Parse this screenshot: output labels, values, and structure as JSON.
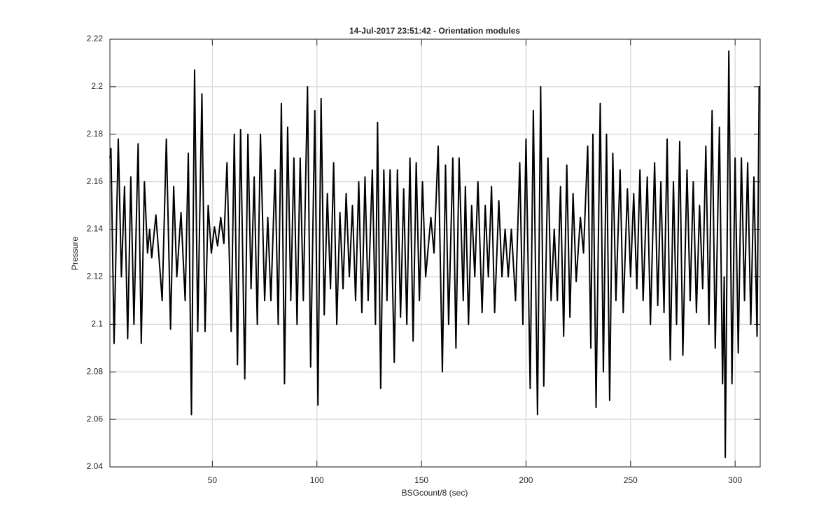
{
  "chart_data": {
    "type": "line",
    "title": "14-Jul-2017 23:51:42 - Orientation modules",
    "x_label": "BSGcount/8 (sec)",
    "y_label": "Pressure",
    "xlim": [
      1,
      312
    ],
    "ylim": [
      2.04,
      2.22
    ],
    "xticks": [
      50,
      100,
      150,
      200,
      250,
      300
    ],
    "yticks": [
      2.04,
      2.06,
      2.08,
      2.1,
      2.12,
      2.14,
      2.16,
      2.18,
      2.2,
      2.22
    ],
    "grid": true,
    "series": [
      {
        "color": "#000000",
        "x": [
          1,
          1.5,
          3,
          5,
          6.5,
          8,
          9.5,
          11,
          12.5,
          14.5,
          16,
          17.5,
          19,
          20,
          21,
          23,
          26,
          28,
          30,
          31.5,
          33,
          35,
          37,
          38.5,
          40,
          41.5,
          43,
          45,
          46.5,
          48,
          49.5,
          51,
          52.5,
          54,
          55.5,
          57,
          59,
          60.5,
          62,
          63.5,
          65.5,
          67,
          68.5,
          70,
          71.5,
          73,
          75,
          76.5,
          78,
          80,
          81.5,
          83,
          84.5,
          86,
          87.5,
          89,
          90.5,
          92,
          93.5,
          95.5,
          97,
          99,
          100.5,
          102,
          103.5,
          105,
          106.5,
          108,
          109.5,
          111,
          112.5,
          114,
          115.5,
          117,
          118.5,
          120,
          121.5,
          123,
          124.5,
          126.5,
          128,
          129,
          130.5,
          132,
          133.5,
          135,
          137,
          138.5,
          140,
          141.5,
          143,
          144.5,
          146,
          147.5,
          149,
          150.5,
          152,
          154.5,
          156,
          158,
          160,
          161.5,
          163,
          165,
          166.5,
          168,
          170,
          171,
          172.5,
          174,
          175.5,
          177,
          179,
          180.5,
          182,
          183.5,
          185,
          187,
          188.5,
          190,
          191.5,
          193,
          195,
          197,
          198.5,
          200,
          202,
          203.5,
          205.5,
          207,
          208.5,
          210.5,
          212,
          213.5,
          215,
          216.5,
          218,
          219.5,
          221,
          222.5,
          224,
          226,
          227.5,
          229.5,
          231,
          232,
          233.5,
          235.5,
          237,
          238.5,
          240,
          241.5,
          243,
          245,
          246.5,
          248.5,
          250,
          251.5,
          253,
          254.5,
          256,
          258,
          259.5,
          261.5,
          263,
          264.5,
          266,
          267.5,
          269,
          270.5,
          272,
          273.5,
          275,
          277,
          278.5,
          280,
          281.5,
          283,
          284.5,
          286,
          287.5,
          289,
          290.5,
          292.5,
          294,
          294.8,
          295.3,
          297,
          298.5,
          300,
          301.5,
          303,
          304.5,
          306,
          307.5,
          309,
          310.5,
          311.5,
          312
        ],
        "values": [
          2.17,
          2.174,
          2.092,
          2.178,
          2.12,
          2.158,
          2.094,
          2.162,
          2.1,
          2.176,
          2.092,
          2.16,
          2.13,
          2.14,
          2.128,
          2.146,
          2.11,
          2.178,
          2.098,
          2.158,
          2.12,
          2.147,
          2.11,
          2.172,
          2.062,
          2.207,
          2.097,
          2.197,
          2.097,
          2.15,
          2.13,
          2.141,
          2.133,
          2.145,
          2.134,
          2.168,
          2.097,
          2.18,
          2.083,
          2.182,
          2.077,
          2.18,
          2.115,
          2.162,
          2.1,
          2.18,
          2.11,
          2.145,
          2.11,
          2.165,
          2.1,
          2.193,
          2.075,
          2.183,
          2.11,
          2.17,
          2.1,
          2.17,
          2.11,
          2.2,
          2.082,
          2.19,
          2.066,
          2.195,
          2.104,
          2.155,
          2.115,
          2.168,
          2.1,
          2.147,
          2.115,
          2.155,
          2.12,
          2.15,
          2.11,
          2.16,
          2.105,
          2.162,
          2.11,
          2.165,
          2.1,
          2.185,
          2.073,
          2.165,
          2.11,
          2.165,
          2.084,
          2.165,
          2.103,
          2.157,
          2.1,
          2.17,
          2.093,
          2.168,
          2.11,
          2.16,
          2.12,
          2.145,
          2.13,
          2.175,
          2.08,
          2.167,
          2.1,
          2.17,
          2.09,
          2.17,
          2.11,
          2.158,
          2.1,
          2.15,
          2.12,
          2.16,
          2.105,
          2.15,
          2.12,
          2.158,
          2.105,
          2.152,
          2.12,
          2.14,
          2.12,
          2.14,
          2.11,
          2.168,
          2.1,
          2.178,
          2.073,
          2.19,
          2.062,
          2.2,
          2.074,
          2.17,
          2.11,
          2.14,
          2.11,
          2.158,
          2.095,
          2.167,
          2.103,
          2.155,
          2.118,
          2.145,
          2.13,
          2.175,
          2.09,
          2.18,
          2.065,
          2.193,
          2.08,
          2.18,
          2.068,
          2.172,
          2.11,
          2.165,
          2.105,
          2.157,
          2.12,
          2.155,
          2.115,
          2.165,
          2.11,
          2.162,
          2.1,
          2.168,
          2.108,
          2.16,
          2.105,
          2.178,
          2.085,
          2.16,
          2.1,
          2.177,
          2.087,
          2.165,
          2.11,
          2.16,
          2.105,
          2.15,
          2.115,
          2.175,
          2.1,
          2.19,
          2.09,
          2.183,
          2.075,
          2.12,
          2.044,
          2.215,
          2.075,
          2.17,
          2.088,
          2.17,
          2.11,
          2.168,
          2.1,
          2.162,
          2.095,
          2.2,
          2.2
        ]
      }
    ]
  }
}
